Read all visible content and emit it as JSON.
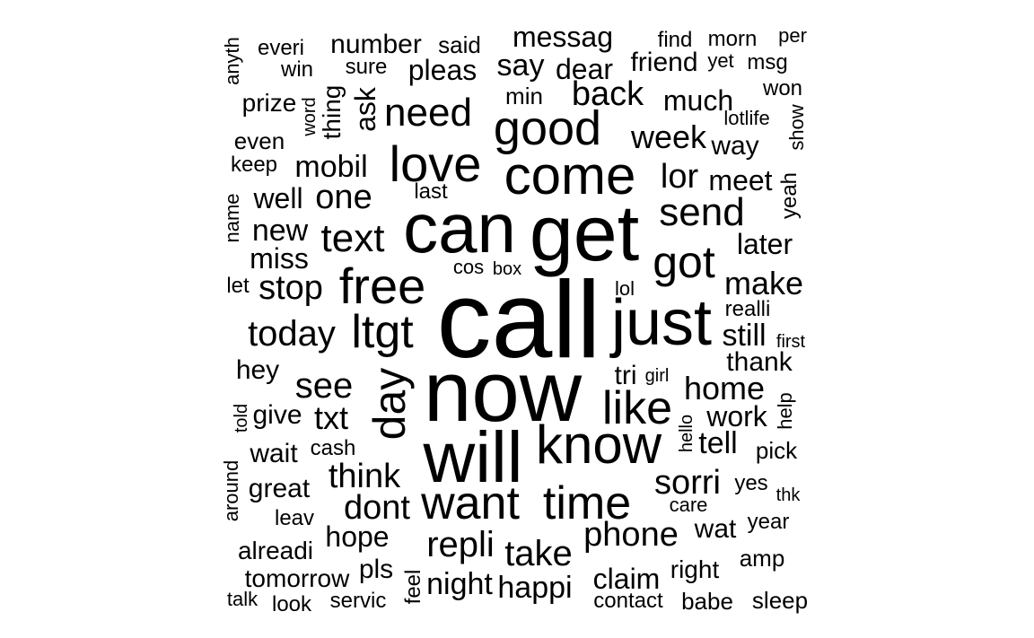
{
  "text_color": "#000000",
  "background": "#ffffff",
  "words": [
    {
      "text": "call"
    },
    {
      "text": "now"
    },
    {
      "text": "get"
    },
    {
      "text": "can"
    },
    {
      "text": "will"
    },
    {
      "text": "just"
    },
    {
      "text": "come"
    },
    {
      "text": "know"
    },
    {
      "text": "love"
    },
    {
      "text": "good"
    },
    {
      "text": "free"
    },
    {
      "text": "want"
    },
    {
      "text": "time"
    },
    {
      "text": "got"
    },
    {
      "text": "ltgt"
    },
    {
      "text": "like"
    },
    {
      "text": "day",
      "vertical": true
    },
    {
      "text": "text"
    },
    {
      "text": "need"
    },
    {
      "text": "send"
    },
    {
      "text": "week"
    },
    {
      "text": "back"
    },
    {
      "text": "today"
    },
    {
      "text": "see"
    },
    {
      "text": "home"
    },
    {
      "text": "repli"
    },
    {
      "text": "take"
    },
    {
      "text": "phone"
    },
    {
      "text": "sorri"
    },
    {
      "text": "think"
    },
    {
      "text": "dont"
    },
    {
      "text": "stop"
    },
    {
      "text": "make"
    },
    {
      "text": "one"
    },
    {
      "text": "mobil"
    },
    {
      "text": "still"
    },
    {
      "text": "lor"
    },
    {
      "text": "messag"
    },
    {
      "text": "say"
    },
    {
      "text": "pleas"
    },
    {
      "text": "number"
    },
    {
      "text": "dear"
    },
    {
      "text": "friend"
    },
    {
      "text": "much"
    },
    {
      "text": "new"
    },
    {
      "text": "miss"
    },
    {
      "text": "well"
    },
    {
      "text": "meet"
    },
    {
      "text": "later"
    },
    {
      "text": "txt"
    },
    {
      "text": "tell"
    },
    {
      "text": "work"
    },
    {
      "text": "give"
    },
    {
      "text": "great"
    },
    {
      "text": "hope"
    },
    {
      "text": "night"
    },
    {
      "text": "happi"
    },
    {
      "text": "claim"
    },
    {
      "text": "thank"
    },
    {
      "text": "hey"
    },
    {
      "text": "tri"
    },
    {
      "text": "wait"
    },
    {
      "text": "wat"
    },
    {
      "text": "way"
    },
    {
      "text": "right"
    },
    {
      "text": "pls"
    },
    {
      "text": "tomorrow"
    },
    {
      "text": "alreadi"
    },
    {
      "text": "prize"
    },
    {
      "text": "everi"
    },
    {
      "text": "said"
    },
    {
      "text": "find"
    },
    {
      "text": "morn"
    },
    {
      "text": "per"
    },
    {
      "text": "win"
    },
    {
      "text": "sure"
    },
    {
      "text": "yet"
    },
    {
      "text": "msg"
    },
    {
      "text": "won"
    },
    {
      "text": "min"
    },
    {
      "text": "even"
    },
    {
      "text": "keep"
    },
    {
      "text": "last"
    },
    {
      "text": "lotlife"
    },
    {
      "text": "cos"
    },
    {
      "text": "box"
    },
    {
      "text": "lol"
    },
    {
      "text": "let"
    },
    {
      "text": "realli"
    },
    {
      "text": "first"
    },
    {
      "text": "girl"
    },
    {
      "text": "cash"
    },
    {
      "text": "leav"
    },
    {
      "text": "yes"
    },
    {
      "text": "thk"
    },
    {
      "text": "care"
    },
    {
      "text": "year"
    },
    {
      "text": "amp"
    },
    {
      "text": "pick"
    },
    {
      "text": "contact"
    },
    {
      "text": "babe"
    },
    {
      "text": "sleep"
    },
    {
      "text": "servic"
    },
    {
      "text": "look"
    },
    {
      "text": "talk"
    },
    {
      "text": "anyth",
      "vertical": true
    },
    {
      "text": "word",
      "vertical": true
    },
    {
      "text": "thing",
      "vertical": true
    },
    {
      "text": "ask",
      "vertical": true
    },
    {
      "text": "show",
      "vertical": true
    },
    {
      "text": "yeah",
      "vertical": true
    },
    {
      "text": "name",
      "vertical": true
    },
    {
      "text": "told",
      "vertical": true
    },
    {
      "text": "around",
      "vertical": true
    },
    {
      "text": "hello",
      "vertical": true
    },
    {
      "text": "help",
      "vertical": true
    },
    {
      "text": "feel",
      "vertical": true
    }
  ]
}
